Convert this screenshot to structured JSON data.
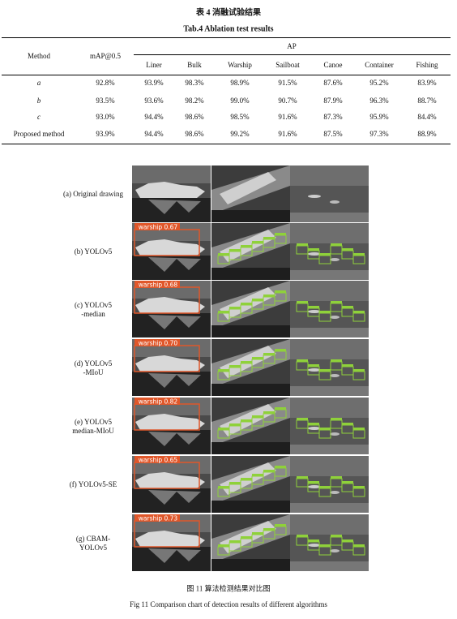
{
  "table": {
    "caption_cn": "表 4  消融试验结果",
    "caption_en": "Tab.4  Ablation test results",
    "header": {
      "method": "Method",
      "map": "mAP@0.5",
      "ap": "AP",
      "classes": [
        "Liner",
        "Bulk",
        "Warship",
        "Sailboat",
        "Canoe",
        "Container",
        "Fishing"
      ]
    },
    "rows": [
      [
        "a",
        "92.8%",
        "93.9%",
        "98.3%",
        "98.9%",
        "91.5%",
        "87.6%",
        "95.2%",
        "83.9%"
      ],
      [
        "b",
        "93.5%",
        "93.6%",
        "98.2%",
        "99.0%",
        "90.7%",
        "87.9%",
        "96.3%",
        "88.7%"
      ],
      [
        "c",
        "93.0%",
        "94.4%",
        "98.6%",
        "98.5%",
        "91.6%",
        "87.3%",
        "95.9%",
        "84.4%"
      ],
      [
        "Proposed method",
        "93.9%",
        "94.4%",
        "98.6%",
        "99.2%",
        "91.6%",
        "87.5%",
        "97.3%",
        "88.9%"
      ]
    ]
  },
  "figure": {
    "rows": [
      {
        "label": [
          "(a) Original drawing"
        ]
      },
      {
        "label": [
          "(b) YOLOv5"
        ],
        "detection": "warship 0.67"
      },
      {
        "label": [
          "(c) YOLOv5",
          "-median"
        ],
        "detection": "warship 0.68"
      },
      {
        "label": [
          "(d) YOLOv5",
          "-MIoU"
        ],
        "detection": "warship 0.70"
      },
      {
        "label": [
          "(e) YOLOv5",
          "median-MIoU"
        ],
        "detection": "warship 0.82"
      },
      {
        "label": [
          "(f) YOLOv5-SE"
        ],
        "detection": "warship 0.65"
      },
      {
        "label": [
          "(g) CBAM-",
          "YOLOv5"
        ],
        "detection": "warship 0.73"
      }
    ],
    "caption_cn": "图 11  算法检测结果对比图",
    "caption_en": "Fig 11  Comparison chart of detection results of different algorithms"
  }
}
